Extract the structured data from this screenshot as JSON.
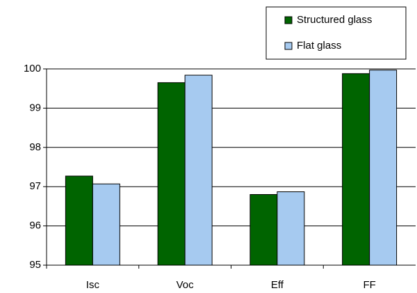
{
  "chart_data": {
    "type": "bar",
    "categories": [
      "Isc",
      "Voc",
      "Eff",
      "FF"
    ],
    "series": [
      {
        "name": "Structured glass",
        "color": "#006400",
        "values": [
          97.27,
          99.65,
          96.8,
          99.88
        ]
      },
      {
        "name": "Flat glass",
        "color": "#a6caf0",
        "values": [
          97.07,
          99.84,
          96.87,
          99.97
        ]
      }
    ],
    "ylim": [
      95,
      100
    ],
    "yticks": [
      95,
      96,
      97,
      98,
      99,
      100
    ],
    "grid": true,
    "legend": "top-right"
  }
}
